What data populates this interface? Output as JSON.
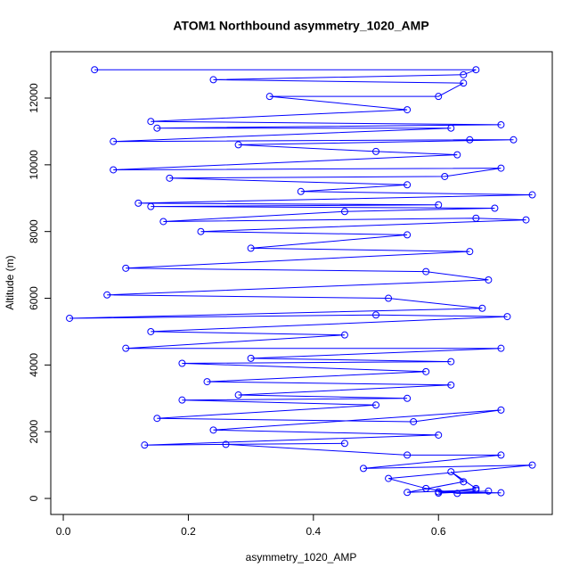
{
  "chart_data": {
    "type": "line",
    "title": "ATOM1 Northbound asymmetry_1020_AMP",
    "x_label": "asymmetry_1020_AMP",
    "y_label": "Altitude (m)",
    "color": "#0000ff",
    "markers": true,
    "x": [
      0.05,
      0.66,
      0.64,
      0.24,
      0.64,
      0.6,
      0.33,
      0.55,
      0.14,
      0.7,
      0.15,
      0.62,
      0.08,
      0.65,
      0.72,
      0.28,
      0.5,
      0.63,
      0.08,
      0.7,
      0.61,
      0.17,
      0.55,
      0.38,
      0.75,
      0.12,
      0.6,
      0.14,
      0.69,
      0.45,
      0.16,
      0.66,
      0.74,
      0.22,
      0.55,
      0.3,
      0.65,
      0.1,
      0.58,
      0.68,
      0.07,
      0.52,
      0.67,
      0.01,
      0.5,
      0.71,
      0.14,
      0.45,
      0.1,
      0.7,
      0.3,
      0.62,
      0.19,
      0.58,
      0.23,
      0.62,
      0.28,
      0.55,
      0.19,
      0.5,
      0.15,
      0.56,
      0.7,
      0.24,
      0.6,
      0.13,
      0.45,
      0.26,
      0.55,
      0.7,
      0.48,
      0.75,
      0.52,
      0.58,
      0.63,
      0.7,
      0.6,
      0.66,
      0.55,
      0.64,
      0.62,
      0.66,
      0.6,
      0.68
    ],
    "values": [
      12850,
      12850,
      12700,
      12550,
      12450,
      12050,
      12050,
      11650,
      11300,
      11200,
      11100,
      11100,
      10700,
      10750,
      10750,
      10600,
      10400,
      10300,
      9850,
      9900,
      9650,
      9600,
      9400,
      9200,
      9100,
      8850,
      8800,
      8750,
      8700,
      8600,
      8300,
      8400,
      8350,
      8000,
      7900,
      7500,
      7400,
      6900,
      6800,
      6550,
      6100,
      6000,
      5700,
      5400,
      5500,
      5450,
      5000,
      4900,
      4500,
      4500,
      4200,
      4100,
      4050,
      3800,
      3500,
      3400,
      3100,
      3000,
      2950,
      2800,
      2400,
      2300,
      2650,
      2050,
      1900,
      1600,
      1650,
      1620,
      1300,
      1300,
      900,
      1000,
      600,
      300,
      150,
      170,
      200,
      250,
      180,
      500,
      800,
      300,
      160,
      220
    ],
    "xlim": [
      -0.02,
      0.782
    ],
    "ylim": [
      -480,
      13390
    ],
    "xticks": [
      {
        "value": 0,
        "label": "0.0"
      },
      0.2,
      0.4,
      0.6
    ],
    "yticks": [
      0,
      2000,
      4000,
      6000,
      8000,
      10000,
      12000
    ]
  }
}
